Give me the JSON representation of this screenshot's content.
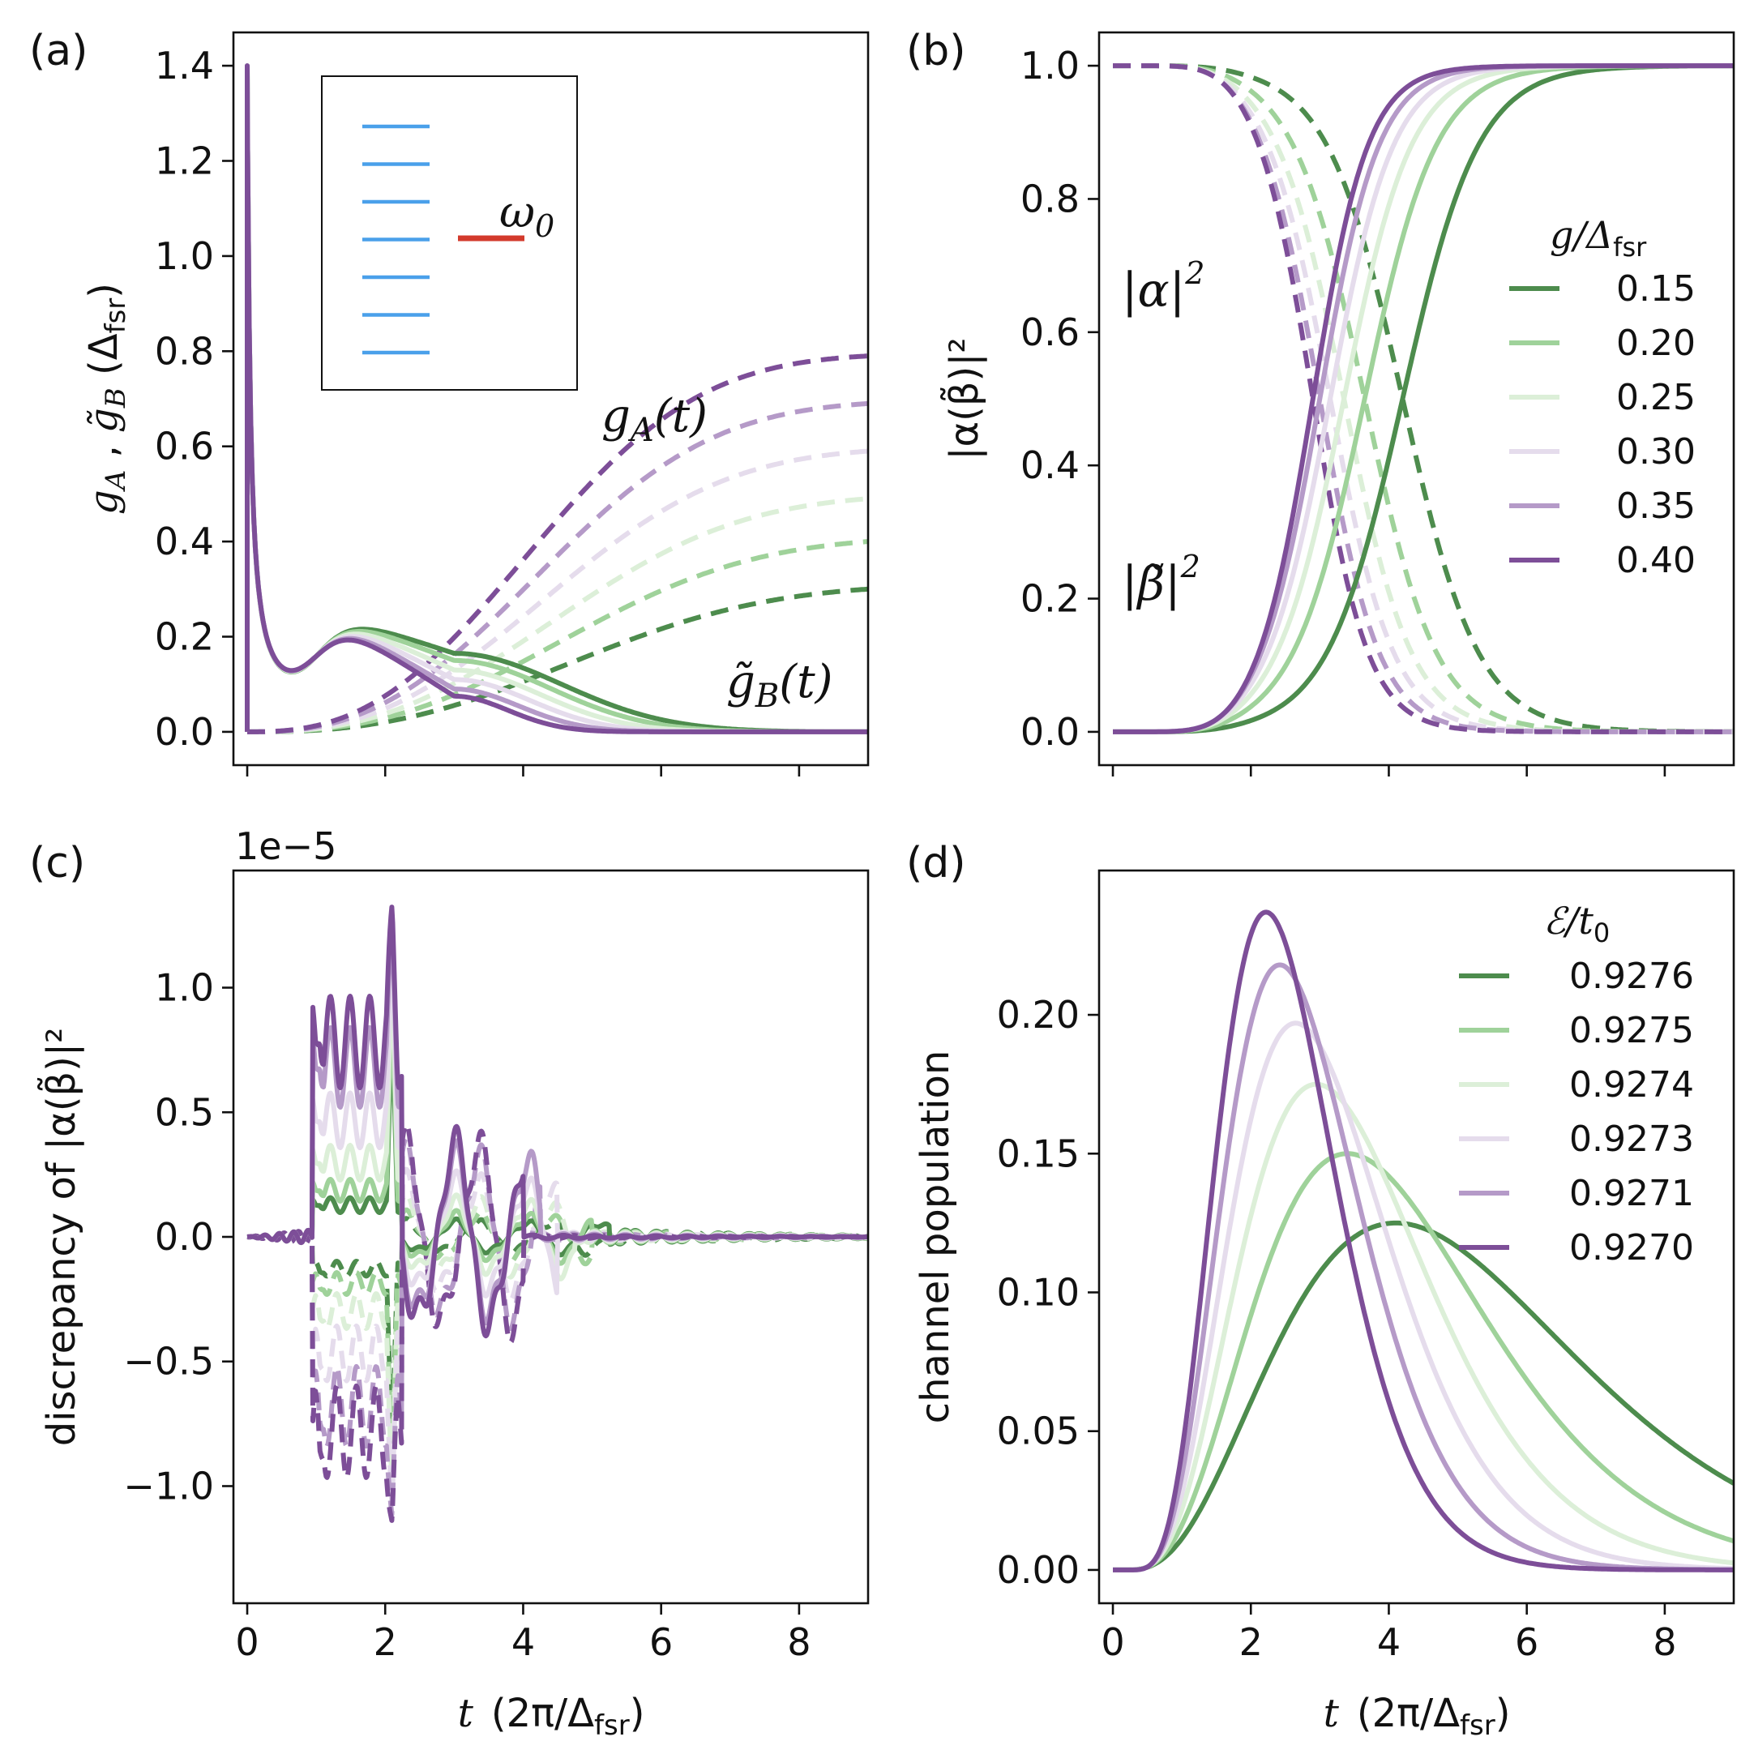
{
  "colors": {
    "g015": "#4d8c4d",
    "g020": "#9fd29a",
    "g025": "#dcefd8",
    "g030": "#e5dcec",
    "g035": "#b59ac8",
    "g040": "#7d4e98",
    "level_blue": "#4aa0ea",
    "level_red": "#d33a2c"
  },
  "panels": {
    "a": {
      "label": "(a)",
      "ylabel_g": "g",
      "ylabel_sub_a": "A",
      "ylabel_sep": " , ",
      "ylabel_gt": "g̃",
      "ylabel_sub_b": "B",
      "ylabel_unit_pre": " (Δ",
      "ylabel_unit_sub": "fsr",
      "ylabel_unit_post": ")",
      "curve_label_ga": "gA(t)",
      "curve_label_ga_main": "g",
      "curve_label_ga_sub": "A",
      "curve_label_ga_arg": "(t)",
      "curve_label_gb_main": "g̃",
      "curve_label_gb_sub": "B",
      "curve_label_gb_arg": "(t)",
      "inset_omega": "ω",
      "inset_omega_sub": "0",
      "inset_levels": 7
    },
    "b": {
      "label": "(b)",
      "ylabel": "|α(β̃)|²",
      "annot_alpha": "|α|",
      "annot_alpha_sup": "2",
      "annot_beta": "|β̃|",
      "annot_beta_sup": "2",
      "legend_title_main": "g/Δ",
      "legend_title_sub": "fsr"
    },
    "c": {
      "label": "(c)",
      "ylabel": "discrepancy of |α(β̃)|²",
      "offset_text": "1e−5"
    },
    "d": {
      "label": "(d)",
      "ylabel": "channel population",
      "legend_title_main": "ℰ/t",
      "legend_title_sub": "0"
    },
    "xlabel_t": "t",
    "xlabel_unit_pre": "(2π/Δ",
    "xlabel_unit_sub": "fsr",
    "xlabel_unit_post": ")"
  },
  "chart_data": [
    {
      "id": "a",
      "type": "line",
      "title": "",
      "xlabel": "",
      "ylabel": "gA , g̃B (Δfsr)",
      "xlim": [
        -0.2,
        9.0
      ],
      "ylim": [
        -0.07,
        1.47
      ],
      "xticks": [
        0,
        2,
        4,
        6,
        8
      ],
      "yticks": [
        0.0,
        0.2,
        0.4,
        0.6,
        0.8,
        1.0,
        1.2,
        1.4
      ],
      "ytick_labels": [
        "0.0",
        "0.2",
        "0.4",
        "0.6",
        "0.8",
        "1.0",
        "1.2",
        "1.4"
      ],
      "series_names": [
        "0.15",
        "0.20",
        "0.25",
        "0.30",
        "0.35",
        "0.40"
      ],
      "gA_end_values_at_t9": [
        0.3,
        0.4,
        0.49,
        0.59,
        0.69,
        0.79
      ],
      "gB_values_at_t3": [
        0.165,
        0.15,
        0.13,
        0.11,
        0.09,
        0.075
      ],
      "gB_spike_peak": 1.4,
      "legend": "none"
    },
    {
      "id": "b",
      "type": "line",
      "xlim": [
        -0.2,
        9.0
      ],
      "ylim": [
        -0.05,
        1.05
      ],
      "xticks": [
        0,
        2,
        4,
        6,
        8
      ],
      "yticks": [
        0.0,
        0.2,
        0.4,
        0.6,
        0.8,
        1.0
      ],
      "ytick_labels": [
        "0.0",
        "0.2",
        "0.4",
        "0.6",
        "0.8",
        "1.0"
      ],
      "ylabel": "|α(β̃)|²",
      "series": [
        {
          "name": "0.15",
          "midpoint": 4.2,
          "solid": "|β̃|²",
          "dashed": "|α|²"
        },
        {
          "name": "0.20",
          "midpoint": 3.65
        },
        {
          "name": "0.25",
          "midpoint": 3.35
        },
        {
          "name": "0.30",
          "midpoint": 3.15
        },
        {
          "name": "0.35",
          "midpoint": 3.0
        },
        {
          "name": "0.40",
          "midpoint": 2.9
        }
      ],
      "legend_title": "g/Δfsr",
      "legend": "right",
      "legend_entries": [
        "0.15",
        "0.20",
        "0.25",
        "0.30",
        "0.35",
        "0.40"
      ]
    },
    {
      "id": "c",
      "type": "line",
      "xlim": [
        -0.2,
        9.0
      ],
      "ylim": [
        -1.47,
        1.47
      ],
      "xticks": [
        0,
        2,
        4,
        6,
        8
      ],
      "xtick_labels": [
        "0",
        "2",
        "4",
        "6",
        "8"
      ],
      "yticks": [
        -1.0,
        -0.5,
        0.0,
        0.5,
        1.0
      ],
      "ytick_labels": [
        "−1.0",
        "−0.5",
        "0.0",
        "0.5",
        "1.0"
      ],
      "y_scale_offset": "1e−5",
      "ylabel": "discrepancy of |α(β̃)|²",
      "xlabel": "t (2π/Δfsr)",
      "series_peak_values": [
        0.15,
        0.22,
        0.35,
        0.55,
        0.8,
        0.92
      ],
      "max_spike_at_t2": 1.35,
      "legend": "none"
    },
    {
      "id": "d",
      "type": "line",
      "xlim": [
        -0.2,
        9.0
      ],
      "ylim": [
        -0.012,
        0.252
      ],
      "xticks": [
        0,
        2,
        4,
        6,
        8
      ],
      "xtick_labels": [
        "0",
        "2",
        "4",
        "6",
        "8"
      ],
      "yticks": [
        0.0,
        0.05,
        0.1,
        0.15,
        0.2
      ],
      "ytick_labels": [
        "0.00",
        "0.05",
        "0.10",
        "0.15",
        "0.20"
      ],
      "ylabel": "channel population",
      "xlabel": "t (2π/Δfsr)",
      "legend_title": "ℰ/t0",
      "legend": "right",
      "series": [
        {
          "name": "0.9276",
          "peak_t": 4.1,
          "peak": 0.125
        },
        {
          "name": "0.9275",
          "peak_t": 3.4,
          "peak": 0.15
        },
        {
          "name": "0.9274",
          "peak_t": 2.95,
          "peak": 0.175
        },
        {
          "name": "0.9273",
          "peak_t": 2.65,
          "peak": 0.197
        },
        {
          "name": "0.9271",
          "peak_t": 2.42,
          "peak": 0.218
        },
        {
          "name": "0.9270",
          "peak_t": 2.22,
          "peak": 0.237
        }
      ]
    }
  ]
}
